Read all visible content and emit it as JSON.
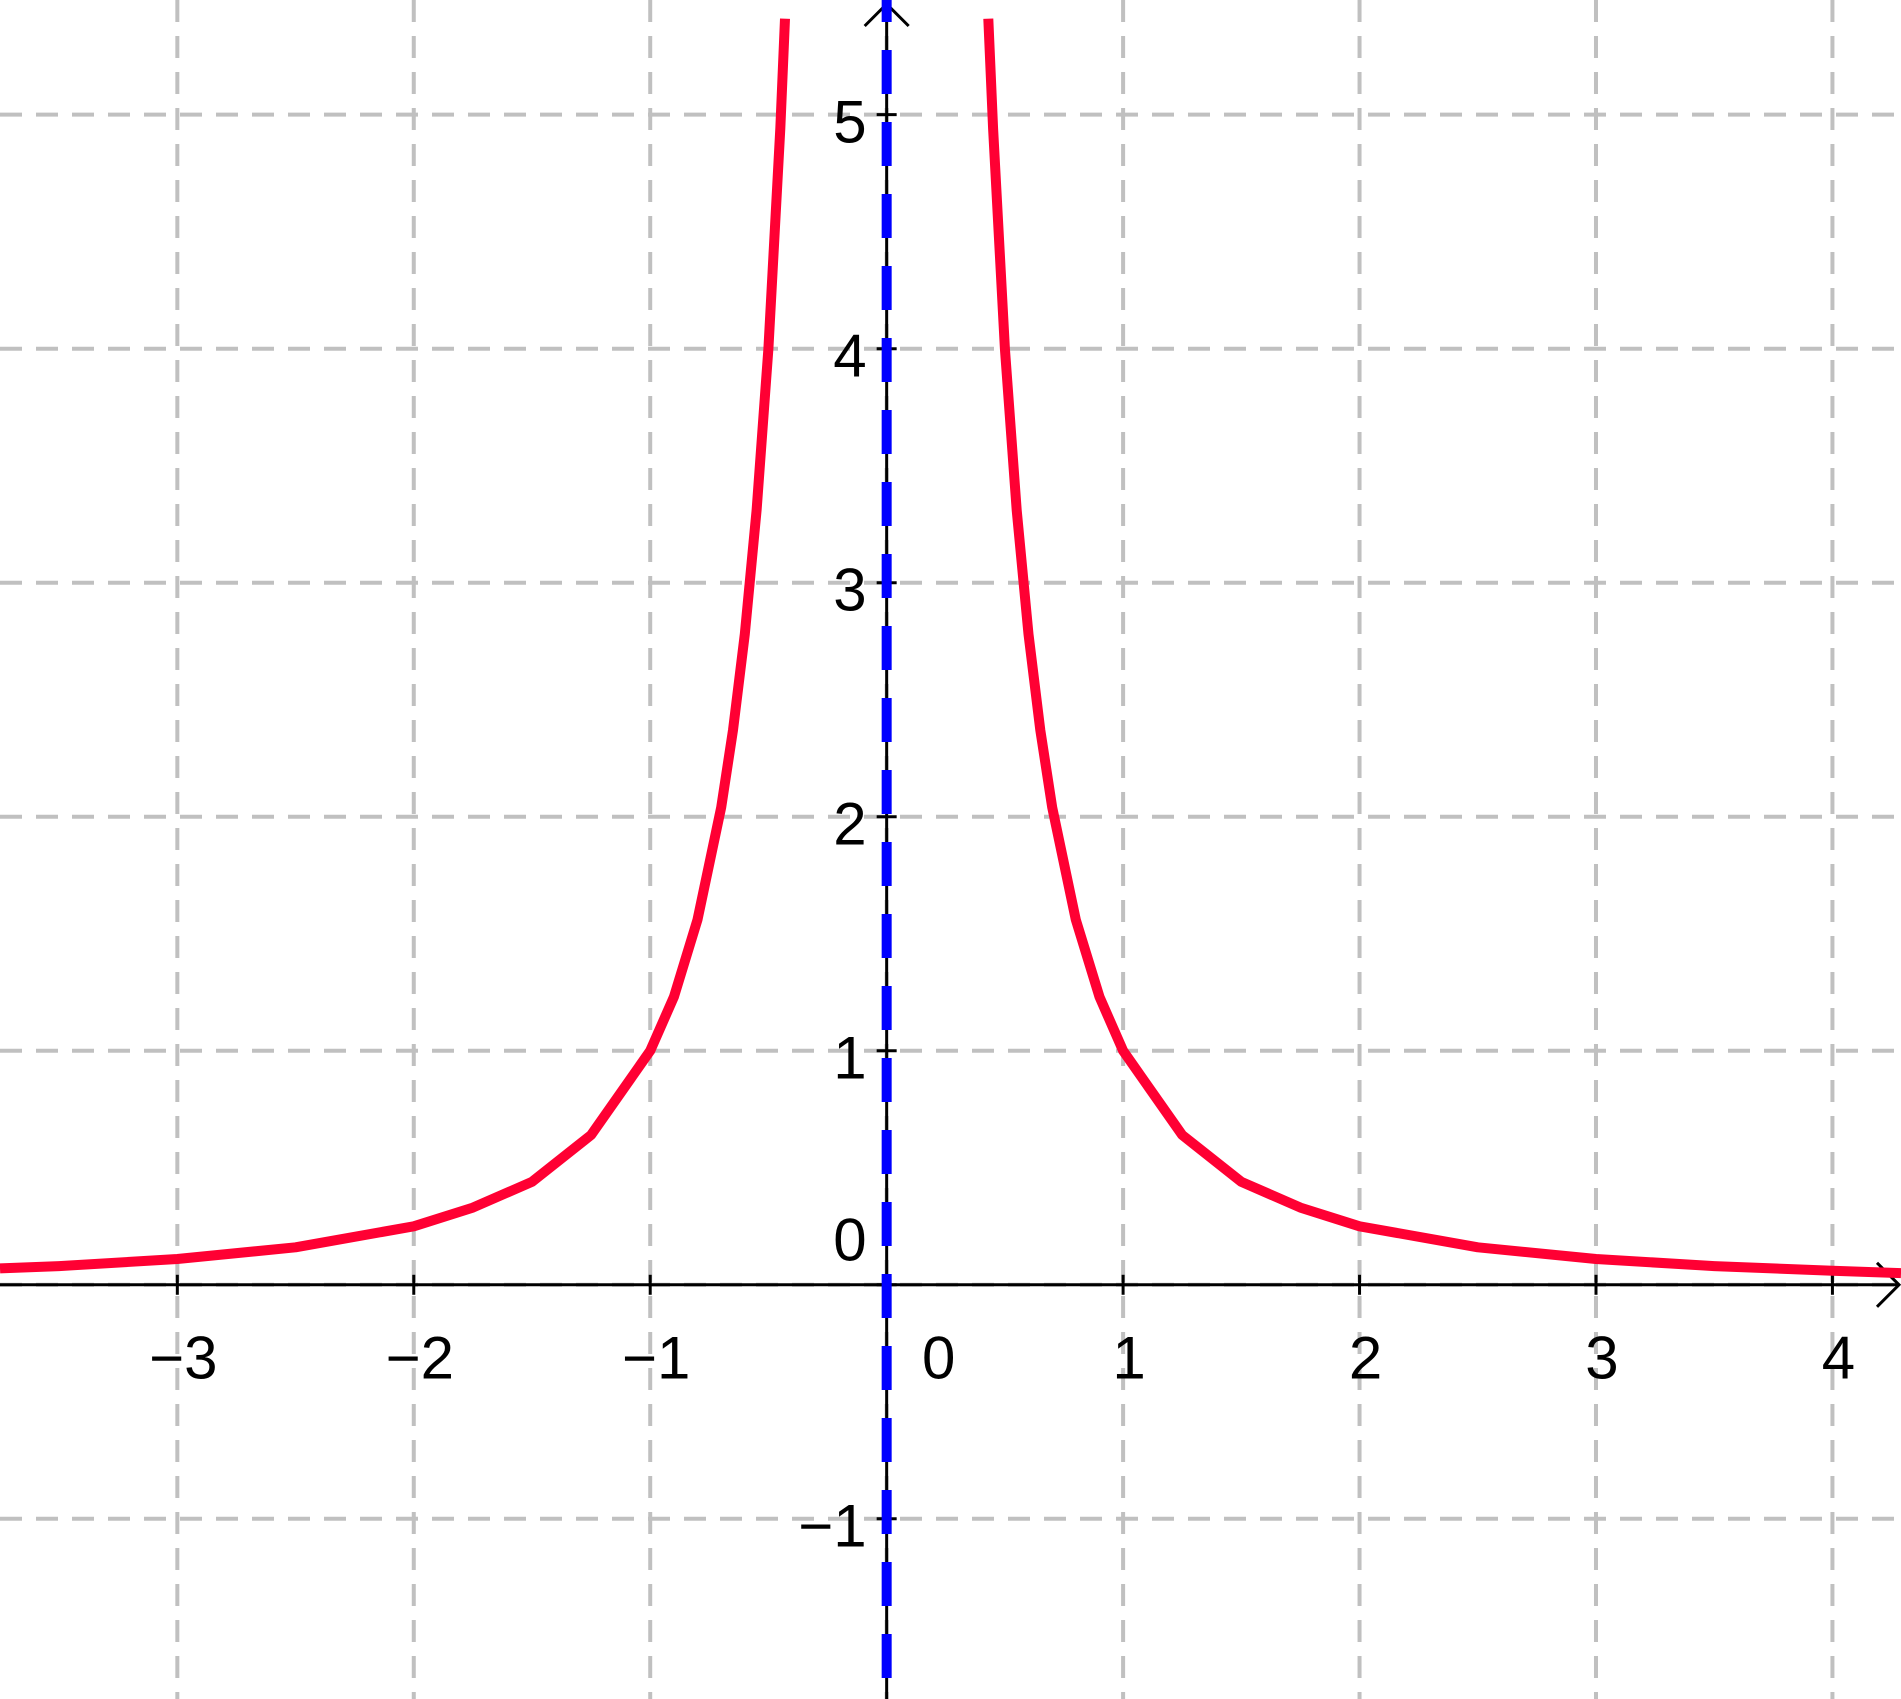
{
  "chart_data": {
    "type": "line",
    "x": [
      -3.75,
      -3.5,
      -3,
      -2.5,
      -2,
      -1.75,
      -1.5,
      -1.25,
      -1,
      -0.9,
      -0.8,
      -0.7,
      -0.65,
      -0.6,
      -0.55,
      -0.5,
      -0.45,
      -0.43,
      null,
      0.43,
      0.45,
      0.5,
      0.55,
      0.6,
      0.65,
      0.7,
      0.8,
      0.9,
      1,
      1.25,
      1.5,
      1.75,
      2,
      2.5,
      3,
      3.5,
      4,
      4.29
    ],
    "series": [
      {
        "color": "#ff0033",
        "values": [
          0.07,
          0.08,
          0.11,
          0.16,
          0.25,
          0.33,
          0.44,
          0.64,
          1,
          1.23,
          1.56,
          2.04,
          2.37,
          2.78,
          3.31,
          4,
          4.94,
          5.41,
          null,
          5.41,
          4.94,
          4,
          3.31,
          2.78,
          2.37,
          2.04,
          1.56,
          1.23,
          1,
          0.64,
          0.44,
          0.33,
          0.25,
          0.16,
          0.11,
          0.08,
          0.06,
          0.05
        ]
      }
    ],
    "vlines": [
      {
        "x": 0,
        "color": "#0000ff"
      }
    ],
    "xlim": [
      -3.75,
      4.29
    ],
    "ylim": [
      -1.77,
      5.49
    ],
    "xticks": [
      {
        "value": -3,
        "label": "−3"
      },
      {
        "value": -2,
        "label": "−2"
      },
      {
        "value": -1,
        "label": "−1"
      },
      0,
      1,
      2,
      3,
      4
    ],
    "yticks": [
      {
        "value": -1,
        "label": "−1"
      },
      0,
      1,
      2,
      3,
      4,
      5
    ],
    "grid": true
  }
}
